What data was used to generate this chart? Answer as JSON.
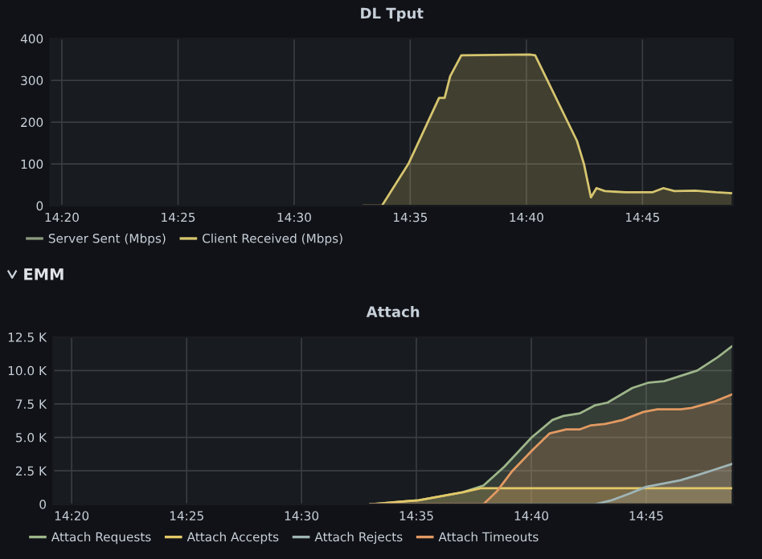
{
  "chart_data": [
    {
      "type": "area",
      "title": "DL Tput",
      "x": [
        14.55,
        14.563,
        14.582,
        14.604,
        14.608,
        14.612,
        14.62,
        14.669,
        14.673,
        14.703,
        14.708,
        14.713,
        14.717,
        14.723,
        14.738,
        14.757,
        14.765,
        14.773,
        14.788,
        14.803,
        14.814
      ],
      "series": [
        {
          "name": "Server Sent (Mbps)",
          "color": "#8c9a7e",
          "values": [
            null,
            null,
            null,
            null,
            null,
            null,
            null,
            null,
            null,
            null,
            null,
            null,
            null,
            null,
            null,
            null,
            null,
            null,
            null,
            null,
            null
          ]
        },
        {
          "name": "Client Received (Mbps)",
          "color": "#d6c56f",
          "values": [
            0,
            0,
            100,
            258,
            258,
            310,
            360,
            362,
            360,
            155,
            100,
            20,
            42,
            35,
            32,
            32,
            42,
            35,
            36,
            32,
            30
          ]
        }
      ],
      "xlim": [
        14.325,
        14.815
      ],
      "xticks": [
        {
          "value": 14.3333,
          "label": "14:20"
        },
        {
          "value": 14.4167,
          "label": "14:25"
        },
        {
          "value": 14.5,
          "label": "14:30"
        },
        {
          "value": 14.5833,
          "label": "14:35"
        },
        {
          "value": 14.6667,
          "label": "14:40"
        },
        {
          "value": 14.75,
          "label": "14:45"
        }
      ],
      "ylim": [
        0,
        400
      ],
      "yticks": [
        0,
        100,
        200,
        300,
        400
      ],
      "grid": true,
      "legend": "bottom"
    },
    {
      "type": "area",
      "title": "Attach",
      "annotations": [
        "EMM"
      ],
      "series": [
        {
          "name": "Attach Requests",
          "color": "#9db58a",
          "x": [
            14.55,
            14.585,
            14.617,
            14.632,
            14.647,
            14.667,
            14.682,
            14.69,
            14.702,
            14.713,
            14.722,
            14.74,
            14.752,
            14.763,
            14.787,
            14.802,
            14.812
          ],
          "values": [
            0,
            300,
            900,
            1400,
            2800,
            5000,
            6300,
            6600,
            6800,
            7400,
            7600,
            8700,
            9100,
            9200,
            10000,
            11000,
            11800
          ]
        },
        {
          "name": "Attach Accepts",
          "color": "#e3c867",
          "x": [
            14.55,
            14.585,
            14.617,
            14.63,
            14.812
          ],
          "values": [
            0,
            300,
            900,
            1200,
            1200
          ]
        },
        {
          "name": "Attach Rejects",
          "color": "#9fb5b6",
          "x": [
            14.55,
            14.713,
            14.725,
            14.738,
            14.75,
            14.76,
            14.775,
            14.788,
            14.8,
            14.812
          ],
          "values": [
            0,
            0,
            300,
            800,
            1300,
            1500,
            1800,
            2200,
            2600,
            3000
          ]
        },
        {
          "name": "Attach Timeouts",
          "color": "#e29a62",
          "x": [
            14.55,
            14.632,
            14.642,
            14.653,
            14.667,
            14.68,
            14.692,
            14.702,
            14.71,
            14.72,
            14.733,
            14.748,
            14.758,
            14.775,
            14.783,
            14.8,
            14.812
          ],
          "values": [
            0,
            0,
            1000,
            2500,
            4000,
            5300,
            5600,
            5600,
            5900,
            6000,
            6300,
            6900,
            7100,
            7100,
            7200,
            7700,
            8200
          ]
        }
      ],
      "xlim": [
        14.32,
        14.813
      ],
      "xticks": [
        {
          "value": 14.3333,
          "label": "14:20"
        },
        {
          "value": 14.4167,
          "label": "14:25"
        },
        {
          "value": 14.5,
          "label": "14:30"
        },
        {
          "value": 14.5833,
          "label": "14:35"
        },
        {
          "value": 14.6667,
          "label": "14:40"
        },
        {
          "value": 14.75,
          "label": "14:45"
        }
      ],
      "ylim": [
        0,
        12500
      ],
      "yticks": [
        0,
        {
          "value": 2500,
          "label": "2.5 K"
        },
        {
          "value": 5000,
          "label": "5.0 K"
        },
        {
          "value": 7500,
          "label": "7.5 K"
        },
        {
          "value": 10000,
          "label": "10.0 K"
        },
        {
          "value": 12500,
          "label": "12.5 K"
        }
      ],
      "grid": true,
      "legend": "bottom"
    }
  ]
}
